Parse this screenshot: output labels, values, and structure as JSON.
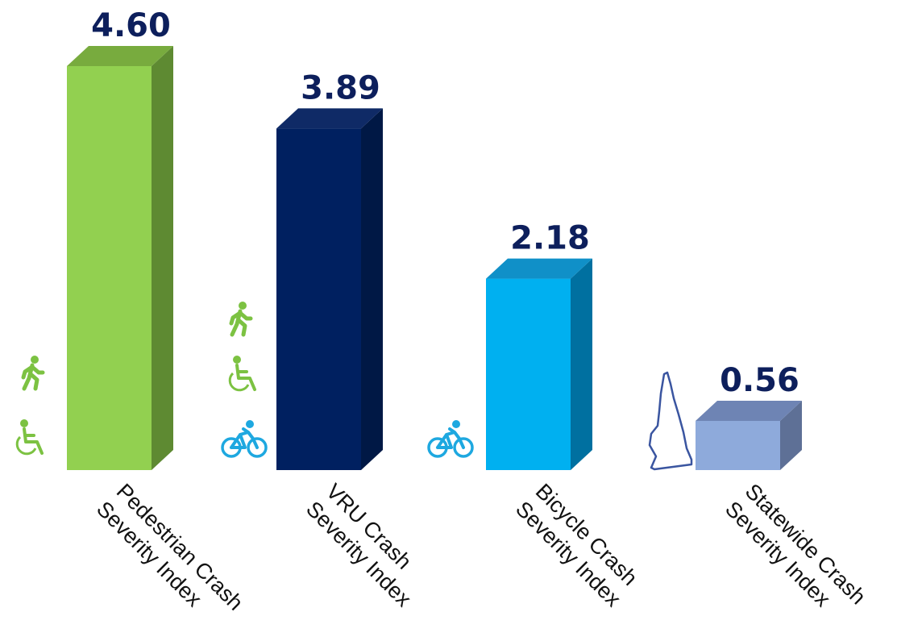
{
  "chart_data": {
    "type": "bar",
    "categories": [
      [
        "Pedestrian Crash",
        "Severity Index"
      ],
      [
        "VRU Crash",
        "Severity Index"
      ],
      [
        "Bicycle Crash",
        "Severity Index"
      ],
      [
        "Statewide Crash",
        "Severity Index"
      ]
    ],
    "values": [
      4.6,
      3.89,
      2.18,
      0.56
    ],
    "value_labels": [
      "4.60",
      "3.89",
      "2.18",
      "0.56"
    ],
    "bar_colors": [
      "#92d050",
      "#002060",
      "#00b0f0",
      "#8eaadb"
    ],
    "bar_side_colors": [
      "#5e8a32",
      "#001845",
      "#0070a0",
      "#5e7096"
    ],
    "bar_top_colors": [
      "#78ab3e",
      "#0f2a66",
      "#1090c8",
      "#6e84b4"
    ],
    "value_label_color": "#0d1f5c",
    "icons": [
      [
        "pedestrian-icon",
        "wheelchair-icon"
      ],
      [
        "pedestrian-icon",
        "wheelchair-icon",
        "bicycle-icon"
      ],
      [
        "bicycle-icon"
      ],
      [
        "state-outline-icon"
      ]
    ],
    "icon_colors": {
      "pedestrian": "#7cc242",
      "wheelchair": "#7cc242",
      "bicycle": "#1ea8e0",
      "state": "#3a55a0"
    },
    "ylim": [
      0,
      4.6
    ],
    "grid": false,
    "legend": "none"
  }
}
